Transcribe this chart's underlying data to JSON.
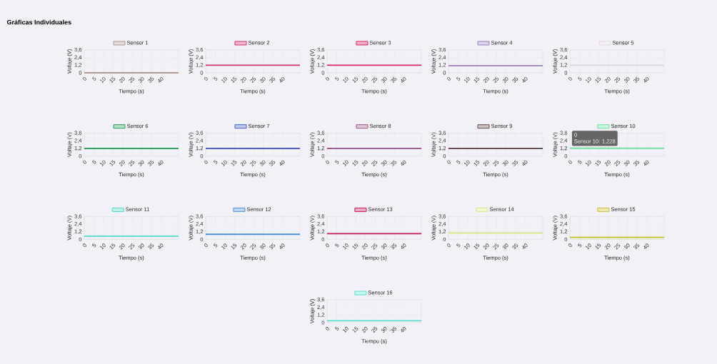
{
  "chart_data": [
    {
      "type": "line",
      "title": "Gráficas Individuales",
      "categories": [
        "0",
        null,
        null,
        null,
        null,
        "5",
        null,
        null,
        null,
        null,
        "10",
        null,
        null,
        null,
        null,
        "15",
        null,
        null,
        null,
        null,
        "20",
        null,
        null,
        null,
        null,
        "25",
        null,
        null,
        null,
        null,
        "30",
        null,
        null,
        null,
        null,
        "35",
        null,
        null,
        null,
        null,
        "40",
        null,
        null,
        null,
        null,
        null,
        null,
        null,
        null,
        null
      ],
      "series": [
        {
          "name": "Sensor 1",
          "color": "#b09a90",
          "values": [
            0,
            0,
            0,
            0,
            0,
            0,
            0,
            0,
            0,
            0,
            0,
            0,
            0,
            0,
            0,
            0,
            0,
            0,
            0,
            0,
            0,
            0,
            0,
            0,
            0,
            0,
            0,
            0,
            0,
            0,
            0,
            0,
            0,
            0,
            0,
            0,
            0,
            0,
            0,
            0,
            0,
            0,
            0,
            0,
            0,
            0,
            0,
            0,
            0,
            0
          ]
        }
      ],
      "ylim": [
        0,
        3.6
      ],
      "yticks": [
        0,
        {
          "value": 1.2,
          "label": "1,2"
        },
        {
          "value": 2.4,
          "label": "2,4"
        },
        {
          "value": 3.6,
          "label": "3,6"
        }
      ],
      "xlabel": "Tiempo (s)",
      "ylabel": "Voltaje (V)",
      "grid": true,
      "legend": "top"
    },
    {
      "type": "line",
      "categories": [
        "0",
        null,
        null,
        null,
        null,
        "5",
        null,
        null,
        null,
        null,
        "10",
        null,
        null,
        null,
        null,
        "15",
        null,
        null,
        null,
        null,
        "20",
        null,
        null,
        null,
        null,
        "25",
        null,
        null,
        null,
        null,
        "30",
        null,
        null,
        null,
        null,
        "35",
        null,
        null,
        null,
        null,
        "40",
        null,
        null,
        null,
        null,
        null,
        null,
        null,
        null,
        null
      ],
      "series": [
        {
          "name": "Sensor 2",
          "color": "#d6336c",
          "values": [
            1.2,
            1.2,
            1.2,
            1.2,
            1.2,
            1.2,
            1.2,
            1.2,
            1.2,
            1.2,
            1.2,
            1.2,
            1.2,
            1.2,
            1.2,
            1.2,
            1.2,
            1.2,
            1.2,
            1.2,
            1.2,
            1.2,
            1.2,
            1.2,
            1.2,
            1.2,
            1.2,
            1.2,
            1.2,
            1.2,
            1.2,
            1.2,
            1.2,
            1.2,
            1.2,
            1.2,
            1.2,
            1.2,
            1.2,
            1.2,
            1.2,
            1.2,
            1.2,
            1.2,
            1.2,
            1.2,
            1.2,
            1.2,
            1.2,
            1.2
          ]
        }
      ],
      "ylim": [
        0,
        3.6
      ],
      "yticks": [
        0,
        {
          "value": 1.2,
          "label": "1,2"
        },
        {
          "value": 2.4,
          "label": "2,4"
        },
        {
          "value": 3.6,
          "label": "3,6"
        }
      ],
      "xlabel": "Tiempo (s)",
      "ylabel": "Voltaje (V)",
      "grid": true,
      "legend": "top"
    },
    {
      "type": "line",
      "categories": [
        "0",
        null,
        null,
        null,
        null,
        "5",
        null,
        null,
        null,
        null,
        "10",
        null,
        null,
        null,
        null,
        "15",
        null,
        null,
        null,
        null,
        "20",
        null,
        null,
        null,
        null,
        "25",
        null,
        null,
        null,
        null,
        "30",
        null,
        null,
        null,
        null,
        "35",
        null,
        null,
        null,
        null,
        "40",
        null,
        null,
        null,
        null,
        null,
        null,
        null,
        null,
        null
      ],
      "series": [
        {
          "name": "Sensor 3",
          "color": "#e0245e",
          "values": [
            1.2,
            1.2,
            1.2,
            1.2,
            1.2,
            1.2,
            1.2,
            1.2,
            1.2,
            1.2,
            1.2,
            1.2,
            1.2,
            1.2,
            1.2,
            1.2,
            1.2,
            1.2,
            1.2,
            1.2,
            1.2,
            1.2,
            1.2,
            1.2,
            1.2,
            1.2,
            1.2,
            1.2,
            1.2,
            1.2,
            1.2,
            1.2,
            1.2,
            1.2,
            1.2,
            1.2,
            1.2,
            1.2,
            1.2,
            1.2,
            1.2,
            1.2,
            1.2,
            1.2,
            1.2,
            1.2,
            1.2,
            1.2,
            1.2,
            1.2
          ]
        }
      ],
      "ylim": [
        0,
        3.6
      ],
      "yticks": [
        0,
        {
          "value": 1.2,
          "label": "1,2"
        },
        {
          "value": 2.4,
          "label": "2,4"
        },
        {
          "value": 3.6,
          "label": "3,6"
        }
      ],
      "xlabel": "Tiempo (s)",
      "ylabel": "Voltaje (V)",
      "grid": true,
      "legend": "top"
    },
    {
      "type": "line",
      "categories": [
        "0",
        null,
        null,
        null,
        null,
        "5",
        null,
        null,
        null,
        null,
        "10",
        null,
        null,
        null,
        null,
        "15",
        null,
        null,
        null,
        null,
        "20",
        null,
        null,
        null,
        null,
        "25",
        null,
        null,
        null,
        null,
        "30",
        null,
        null,
        null,
        null,
        "35",
        null,
        null,
        null,
        null,
        "40",
        null,
        null,
        null,
        null,
        null,
        null,
        null,
        null,
        null
      ],
      "series": [
        {
          "name": "Sensor 4",
          "color": "#9b7fc4",
          "values": [
            1.1,
            1.1,
            1.1,
            1.1,
            1.1,
            1.1,
            1.1,
            1.1,
            1.1,
            1.1,
            1.1,
            1.1,
            1.1,
            1.1,
            1.1,
            1.1,
            1.1,
            1.1,
            1.1,
            1.1,
            1.1,
            1.1,
            1.1,
            1.1,
            1.1,
            1.1,
            1.1,
            1.1,
            1.1,
            1.1,
            1.1,
            1.1,
            1.1,
            1.1,
            1.1,
            1.1,
            1.1,
            1.1,
            1.1,
            1.1,
            1.1,
            1.1,
            1.1,
            1.1,
            1.1,
            1.1,
            1.1,
            1.1,
            1.1,
            1.1
          ]
        }
      ],
      "ylim": [
        0,
        3.6
      ],
      "yticks": [
        0,
        {
          "value": 1.2,
          "label": "1,2"
        },
        {
          "value": 2.4,
          "label": "2,4"
        },
        {
          "value": 3.6,
          "label": "3,6"
        }
      ],
      "xlabel": "Tiempo (s)",
      "ylabel": "Voltaje (V)",
      "grid": true,
      "legend": "top"
    },
    {
      "type": "line",
      "categories": [
        "0",
        null,
        null,
        null,
        null,
        "5",
        null,
        null,
        null,
        null,
        "10",
        null,
        null,
        null,
        null,
        "15",
        null,
        null,
        null,
        null,
        "20",
        null,
        null,
        null,
        null,
        "25",
        null,
        null,
        null,
        null,
        "30",
        null,
        null,
        null,
        null,
        "35",
        null,
        null,
        null,
        null,
        "40",
        null,
        null,
        null,
        null,
        null,
        null,
        null,
        null,
        null
      ],
      "series": [
        {
          "name": "Sensor 5",
          "color": "#e2d8dc",
          "values": [
            1.2,
            1.2,
            1.2,
            1.2,
            1.2,
            1.2,
            1.2,
            1.2,
            1.2,
            1.2,
            1.2,
            1.2,
            1.2,
            1.2,
            1.2,
            1.2,
            1.2,
            1.2,
            1.2,
            1.2,
            1.2,
            1.2,
            1.2,
            1.2,
            1.2,
            1.2,
            1.2,
            1.2,
            1.2,
            1.2,
            1.2,
            1.2,
            1.2,
            1.2,
            1.2,
            1.2,
            1.2,
            1.2,
            1.2,
            1.2,
            1.2,
            1.2,
            1.2,
            1.2,
            1.2,
            1.2,
            1.2,
            1.2,
            1.2,
            1.2
          ]
        }
      ],
      "ylim": [
        0,
        3.6
      ],
      "yticks": [
        0,
        {
          "value": 1.2,
          "label": "1,2"
        },
        {
          "value": 2.4,
          "label": "2,4"
        },
        {
          "value": 3.6,
          "label": "3,6"
        }
      ],
      "xlabel": "Tiempo (s)",
      "ylabel": "Voltaje (V)",
      "grid": true,
      "legend": "top"
    },
    {
      "type": "line",
      "categories": [
        "0",
        null,
        null,
        null,
        null,
        "5",
        null,
        null,
        null,
        null,
        "10",
        null,
        null,
        null,
        null,
        "15",
        null,
        null,
        null,
        null,
        "20",
        null,
        null,
        null,
        null,
        "25",
        null,
        null,
        null,
        null,
        "30",
        null,
        null,
        null,
        null,
        "35",
        null,
        null,
        null,
        null,
        "40",
        null,
        null,
        null,
        null,
        null,
        null,
        null,
        null,
        null
      ],
      "series": [
        {
          "name": "Sensor 6",
          "color": "#2e9e5b",
          "values": [
            1.2,
            1.2,
            1.2,
            1.2,
            1.2,
            1.2,
            1.2,
            1.2,
            1.2,
            1.2,
            1.2,
            1.2,
            1.2,
            1.2,
            1.2,
            1.2,
            1.2,
            1.2,
            1.2,
            1.2,
            1.2,
            1.2,
            1.2,
            1.2,
            1.2,
            1.2,
            1.2,
            1.2,
            1.2,
            1.2,
            1.2,
            1.2,
            1.2,
            1.2,
            1.2,
            1.2,
            1.2,
            1.2,
            1.2,
            1.2,
            1.2,
            1.2,
            1.2,
            1.2,
            1.2,
            1.2,
            1.2,
            1.2,
            1.2,
            1.2
          ]
        }
      ],
      "ylim": [
        0,
        3.6
      ],
      "yticks": [
        0,
        {
          "value": 1.2,
          "label": "1,2"
        },
        {
          "value": 2.4,
          "label": "2,4"
        },
        {
          "value": 3.6,
          "label": "3,6"
        }
      ],
      "xlabel": "Tiempo (s)",
      "ylabel": "Voltaje (V)",
      "grid": true,
      "legend": "top"
    },
    {
      "type": "line",
      "categories": [
        "0",
        null,
        null,
        null,
        null,
        "5",
        null,
        null,
        null,
        null,
        "10",
        null,
        null,
        null,
        null,
        "15",
        null,
        null,
        null,
        null,
        "20",
        null,
        null,
        null,
        null,
        "25",
        null,
        null,
        null,
        null,
        "30",
        null,
        null,
        null,
        null,
        "35",
        null,
        null,
        null,
        null,
        "40",
        null,
        null,
        null,
        null,
        null,
        null,
        null,
        null,
        null
      ],
      "series": [
        {
          "name": "Sensor 7",
          "color": "#4b5fc9",
          "values": [
            1.2,
            1.2,
            1.2,
            1.2,
            1.2,
            1.2,
            1.2,
            1.2,
            1.2,
            1.2,
            1.2,
            1.2,
            1.2,
            1.2,
            1.2,
            1.2,
            1.2,
            1.2,
            1.2,
            1.2,
            1.2,
            1.2,
            1.2,
            1.2,
            1.2,
            1.2,
            1.2,
            1.2,
            1.2,
            1.2,
            1.2,
            1.2,
            1.2,
            1.2,
            1.2,
            1.2,
            1.2,
            1.2,
            1.2,
            1.2,
            1.2,
            1.2,
            1.2,
            1.2,
            1.2,
            1.2,
            1.2,
            1.2,
            1.2,
            1.2
          ]
        }
      ],
      "ylim": [
        0,
        3.6
      ],
      "yticks": [
        0,
        {
          "value": 1.2,
          "label": "1,2"
        },
        {
          "value": 2.4,
          "label": "2,4"
        },
        {
          "value": 3.6,
          "label": "3,6"
        }
      ],
      "xlabel": "Tiempo (s)",
      "ylabel": "Voltaje (V)",
      "grid": true,
      "legend": "top"
    },
    {
      "type": "line",
      "categories": [
        "0",
        null,
        null,
        null,
        null,
        "5",
        null,
        null,
        null,
        null,
        "10",
        null,
        null,
        null,
        null,
        "15",
        null,
        null,
        null,
        null,
        "20",
        null,
        null,
        null,
        null,
        "25",
        null,
        null,
        null,
        null,
        "30",
        null,
        null,
        null,
        null,
        "35",
        null,
        null,
        null,
        null,
        "40",
        null,
        null,
        null,
        null,
        null,
        null,
        null,
        null,
        null
      ],
      "series": [
        {
          "name": "Sensor 8",
          "color": "#9c5d8f",
          "values": [
            1.2,
            1.2,
            1.2,
            1.2,
            1.2,
            1.2,
            1.2,
            1.2,
            1.2,
            1.2,
            1.2,
            1.2,
            1.2,
            1.2,
            1.2,
            1.2,
            1.2,
            1.2,
            1.2,
            1.2,
            1.2,
            1.2,
            1.2,
            1.2,
            1.2,
            1.2,
            1.2,
            1.2,
            1.2,
            1.2,
            1.2,
            1.2,
            1.2,
            1.2,
            1.2,
            1.2,
            1.2,
            1.2,
            1.2,
            1.2,
            1.2,
            1.2,
            1.2,
            1.2,
            1.2,
            1.2,
            1.2,
            1.2,
            1.2,
            1.2
          ]
        }
      ],
      "ylim": [
        0,
        3.6
      ],
      "yticks": [
        0,
        {
          "value": 1.2,
          "label": "1,2"
        },
        {
          "value": 2.4,
          "label": "2,4"
        },
        {
          "value": 3.6,
          "label": "3,6"
        }
      ],
      "xlabel": "Tiempo (s)",
      "ylabel": "Voltaje (V)",
      "grid": true,
      "legend": "top"
    },
    {
      "type": "line",
      "categories": [
        "0",
        null,
        null,
        null,
        null,
        "5",
        null,
        null,
        null,
        null,
        "10",
        null,
        null,
        null,
        null,
        "15",
        null,
        null,
        null,
        null,
        "20",
        null,
        null,
        null,
        null,
        "25",
        null,
        null,
        null,
        null,
        "30",
        null,
        null,
        null,
        null,
        "35",
        null,
        null,
        null,
        null,
        "40",
        null,
        null,
        null,
        null,
        null,
        null,
        null,
        null,
        null
      ],
      "series": [
        {
          "name": "Sensor 9",
          "color": "#6b4e4e",
          "values": [
            1.2,
            1.2,
            1.2,
            1.2,
            1.2,
            1.2,
            1.2,
            1.2,
            1.2,
            1.2,
            1.2,
            1.2,
            1.2,
            1.2,
            1.2,
            1.2,
            1.2,
            1.2,
            1.2,
            1.2,
            1.2,
            1.2,
            1.2,
            1.2,
            1.2,
            1.2,
            1.2,
            1.2,
            1.2,
            1.2,
            1.2,
            1.2,
            1.2,
            1.2,
            1.2,
            1.2,
            1.2,
            1.2,
            1.2,
            1.2,
            1.2,
            1.2,
            1.2,
            1.2,
            1.2,
            1.2,
            1.2,
            1.2,
            1.2,
            1.2
          ]
        }
      ],
      "ylim": [
        0,
        3.6
      ],
      "yticks": [
        0,
        {
          "value": 1.2,
          "label": "1,2"
        },
        {
          "value": 2.4,
          "label": "2,4"
        },
        {
          "value": 3.6,
          "label": "3,6"
        }
      ],
      "xlabel": "Tiempo (s)",
      "ylabel": "Voltaje (V)",
      "grid": true,
      "legend": "top"
    },
    {
      "type": "line",
      "categories": [
        "0",
        null,
        null,
        null,
        null,
        "5",
        null,
        null,
        null,
        null,
        "10",
        null,
        null,
        null,
        null,
        "15",
        null,
        null,
        null,
        null,
        "20",
        null,
        null,
        null,
        null,
        "25",
        null,
        null,
        null,
        null,
        "30",
        null,
        null,
        null,
        null,
        "35",
        null,
        null,
        null,
        null,
        "40",
        null,
        null,
        null,
        null,
        null,
        null,
        null,
        null,
        null
      ],
      "series": [
        {
          "name": "Sensor 10",
          "color": "#6ee0a0",
          "values": [
            1.228,
            1.228,
            1.228,
            1.228,
            1.228,
            1.228,
            1.228,
            1.228,
            1.228,
            1.228,
            1.228,
            1.228,
            1.228,
            1.228,
            1.228,
            1.228,
            1.228,
            1.228,
            1.228,
            1.228,
            1.228,
            1.228,
            1.228,
            1.228,
            1.228,
            1.228,
            1.228,
            1.228,
            1.228,
            1.228,
            1.228,
            1.228,
            1.228,
            1.228,
            1.228,
            1.228,
            1.228,
            1.228,
            1.228,
            1.228,
            1.228,
            1.228,
            1.228,
            1.228,
            1.228,
            1.228,
            1.228,
            1.228,
            1.228,
            1.228
          ]
        }
      ],
      "ylim": [
        0,
        3.6
      ],
      "yticks": [
        0,
        {
          "value": 1.2,
          "label": "1,2"
        },
        {
          "value": 2.4,
          "label": "2,4"
        },
        {
          "value": 3.6,
          "label": "3,6"
        }
      ],
      "xlabel": "Tiempo (s)",
      "ylabel": "Voltaje (V)",
      "grid": true,
      "legend": "top",
      "annotations": [
        "0",
        {
          "text": "Sensor 10: 1,228",
          "x": "0",
          "y": 1.228
        }
      ]
    },
    {
      "type": "line",
      "categories": [
        "0",
        null,
        null,
        null,
        null,
        "5",
        null,
        null,
        null,
        null,
        "10",
        null,
        null,
        null,
        null,
        "15",
        null,
        null,
        null,
        null,
        "20",
        null,
        null,
        null,
        null,
        "25",
        null,
        null,
        null,
        null,
        "30",
        null,
        null,
        null,
        null,
        "35",
        null,
        null,
        null,
        null,
        "40",
        null,
        null,
        null,
        null,
        null,
        null,
        null,
        null,
        null
      ],
      "series": [
        {
          "name": "Sensor 11",
          "color": "#4fd8c8",
          "values": [
            0.5,
            0.5,
            0.5,
            0.5,
            0.5,
            0.5,
            0.5,
            0.5,
            0.5,
            0.5,
            0.5,
            0.5,
            0.5,
            0.5,
            0.5,
            0.5,
            0.5,
            0.5,
            0.5,
            0.5,
            0.5,
            0.5,
            0.5,
            0.5,
            0.5,
            0.5,
            0.5,
            0.5,
            0.5,
            0.5,
            0.5,
            0.5,
            0.5,
            0.5,
            0.5,
            0.5,
            0.5,
            0.5,
            0.5,
            0.5,
            0.5,
            0.5,
            0.5,
            0.5,
            0.5,
            0.5,
            0.5,
            0.5,
            0.5,
            0.5
          ]
        }
      ],
      "ylim": [
        0,
        3.6
      ],
      "yticks": [
        0,
        {
          "value": 1.2,
          "label": "1,2"
        },
        {
          "value": 2.4,
          "label": "2,4"
        },
        {
          "value": 3.6,
          "label": "3,6"
        }
      ],
      "xlabel": "Tiempo (s)",
      "ylabel": "Voltaje (V)",
      "grid": true,
      "legend": "top"
    },
    {
      "type": "line",
      "categories": [
        "0",
        null,
        null,
        null,
        null,
        "5",
        null,
        null,
        null,
        null,
        "10",
        null,
        null,
        null,
        null,
        "15",
        null,
        null,
        null,
        null,
        "20",
        null,
        null,
        null,
        null,
        "25",
        null,
        null,
        null,
        null,
        "30",
        null,
        null,
        null,
        null,
        "35",
        null,
        null,
        null,
        null,
        "40",
        null,
        null,
        null,
        null,
        null,
        null,
        null,
        null,
        null
      ],
      "series": [
        {
          "name": "Sensor 12",
          "color": "#4a8fd6",
          "values": [
            0.8,
            0.8,
            0.8,
            0.8,
            0.8,
            0.8,
            0.8,
            0.8,
            0.8,
            0.8,
            0.8,
            0.8,
            0.8,
            0.8,
            0.8,
            0.8,
            0.8,
            0.8,
            0.8,
            0.8,
            0.8,
            0.8,
            0.8,
            0.8,
            0.8,
            0.8,
            0.8,
            0.8,
            0.8,
            0.8,
            0.8,
            0.8,
            0.8,
            0.8,
            0.8,
            0.8,
            0.8,
            0.8,
            0.8,
            0.8,
            0.8,
            0.8,
            0.8,
            0.8,
            0.8,
            0.8,
            0.8,
            0.8,
            0.8,
            0.8
          ]
        }
      ],
      "ylim": [
        0,
        3.6
      ],
      "yticks": [
        0,
        {
          "value": 1.2,
          "label": "1,2"
        },
        {
          "value": 2.4,
          "label": "2,4"
        },
        {
          "value": 3.6,
          "label": "3,6"
        }
      ],
      "xlabel": "Tiempo (s)",
      "ylabel": "Voltaje (V)",
      "grid": true,
      "legend": "top"
    },
    {
      "type": "line",
      "categories": [
        "0",
        null,
        null,
        null,
        null,
        "5",
        null,
        null,
        null,
        null,
        "10",
        null,
        null,
        null,
        null,
        "15",
        null,
        null,
        null,
        null,
        "20",
        null,
        null,
        null,
        null,
        "25",
        null,
        null,
        null,
        null,
        "30",
        null,
        null,
        null,
        null,
        "35",
        null,
        null,
        null,
        null,
        "40",
        null,
        null,
        null,
        null,
        null,
        null,
        null,
        null,
        null
      ],
      "series": [
        {
          "name": "Sensor 13",
          "color": "#c2185b",
          "values": [
            0.9,
            0.9,
            0.9,
            0.9,
            0.9,
            0.9,
            0.9,
            0.9,
            0.9,
            0.9,
            0.9,
            0.9,
            0.9,
            0.9,
            0.9,
            0.9,
            0.9,
            0.9,
            0.9,
            0.9,
            0.9,
            0.9,
            0.9,
            0.9,
            0.9,
            0.9,
            0.9,
            0.9,
            0.9,
            0.9,
            0.9,
            0.9,
            0.9,
            0.9,
            0.9,
            0.9,
            0.9,
            0.9,
            0.9,
            0.9,
            0.9,
            0.9,
            0.9,
            0.9,
            0.9,
            0.9,
            0.9,
            0.9,
            0.9,
            0.9
          ]
        }
      ],
      "ylim": [
        0,
        3.6
      ],
      "yticks": [
        0,
        {
          "value": 1.2,
          "label": "1,2"
        },
        {
          "value": 2.4,
          "label": "2,4"
        },
        {
          "value": 3.6,
          "label": "3,6"
        }
      ],
      "xlabel": "Tiempo (s)",
      "ylabel": "Voltaje (V)",
      "grid": true,
      "legend": "top"
    },
    {
      "type": "line",
      "categories": [
        "0",
        null,
        null,
        null,
        null,
        "5",
        null,
        null,
        null,
        null,
        "10",
        null,
        null,
        null,
        null,
        "15",
        null,
        null,
        null,
        null,
        "20",
        null,
        null,
        null,
        null,
        "25",
        null,
        null,
        null,
        null,
        "30",
        null,
        null,
        null,
        null,
        "35",
        null,
        null,
        null,
        null,
        "40",
        null,
        null,
        null,
        null,
        null,
        null,
        null,
        null,
        null
      ],
      "series": [
        {
          "name": "Sensor 14",
          "color": "#d8e88a",
          "values": [
            1.0,
            1.0,
            1.0,
            1.0,
            1.0,
            1.0,
            1.0,
            1.0,
            1.0,
            1.0,
            1.0,
            1.0,
            1.0,
            1.0,
            1.0,
            1.0,
            1.0,
            1.0,
            1.0,
            1.0,
            1.0,
            1.0,
            1.0,
            1.0,
            1.0,
            1.0,
            1.0,
            1.0,
            1.0,
            1.0,
            1.0,
            1.0,
            1.0,
            1.0,
            1.0,
            1.0,
            1.0,
            1.0,
            1.0,
            1.0,
            1.0,
            1.0,
            1.0,
            1.0,
            1.0,
            1.0,
            1.0,
            1.0,
            1.0,
            1.0
          ]
        }
      ],
      "ylim": [
        0,
        3.6
      ],
      "yticks": [
        0,
        {
          "value": 1.2,
          "label": "1,2"
        },
        {
          "value": 2.4,
          "label": "2,4"
        },
        {
          "value": 3.6,
          "label": "3,6"
        }
      ],
      "xlabel": "Tiempo (s)",
      "ylabel": "Voltaje (V)",
      "grid": true,
      "legend": "top"
    },
    {
      "type": "line",
      "categories": [
        "0",
        null,
        null,
        null,
        null,
        "5",
        null,
        null,
        null,
        null,
        "10",
        null,
        null,
        null,
        null,
        "15",
        null,
        null,
        null,
        null,
        "20",
        null,
        null,
        null,
        null,
        "25",
        null,
        null,
        null,
        null,
        "30",
        null,
        null,
        null,
        null,
        "35",
        null,
        null,
        null,
        null,
        "40",
        null,
        null,
        null,
        null,
        null,
        null,
        null,
        null,
        null
      ],
      "series": [
        {
          "name": "Sensor 15",
          "color": "#c8c030",
          "values": [
            0.3,
            0.3,
            0.3,
            0.3,
            0.3,
            0.3,
            0.3,
            0.3,
            0.3,
            0.3,
            0.3,
            0.3,
            0.3,
            0.3,
            0.3,
            0.3,
            0.3,
            0.3,
            0.3,
            0.3,
            0.3,
            0.3,
            0.3,
            0.3,
            0.3,
            0.3,
            0.3,
            0.3,
            0.3,
            0.3,
            0.3,
            0.3,
            0.3,
            0.3,
            0.3,
            0.3,
            0.3,
            0.3,
            0.3,
            0.3,
            0.3,
            0.3,
            0.3,
            0.3,
            0.3,
            0.3,
            0.3,
            0.3,
            0.3,
            0.3
          ]
        }
      ],
      "ylim": [
        0,
        3.6
      ],
      "yticks": [
        0,
        {
          "value": 1.2,
          "label": "1,2"
        },
        {
          "value": 2.4,
          "label": "2,4"
        },
        {
          "value": 3.6,
          "label": "3,6"
        }
      ],
      "xlabel": "Tiempo (s)",
      "ylabel": "Voltaje (V)",
      "grid": true,
      "legend": "top"
    },
    {
      "type": "line",
      "categories": [
        "0",
        null,
        null,
        null,
        null,
        "5",
        null,
        null,
        null,
        null,
        "10",
        null,
        null,
        null,
        null,
        "15",
        null,
        null,
        null,
        null,
        "20",
        null,
        null,
        null,
        null,
        "25",
        null,
        null,
        null,
        null,
        "30",
        null,
        null,
        null,
        null,
        "35",
        null,
        null,
        null,
        null,
        "40",
        null,
        null,
        null,
        null,
        null,
        null,
        null,
        null,
        null
      ],
      "series": [
        {
          "name": "Sensor 16",
          "color": "#5ae0d0",
          "values": [
            0.3,
            0.3,
            0.3,
            0.3,
            0.3,
            0.3,
            0.3,
            0.3,
            0.3,
            0.3,
            0.3,
            0.3,
            0.3,
            0.3,
            0.3,
            0.3,
            0.3,
            0.3,
            0.3,
            0.3,
            0.3,
            0.3,
            0.3,
            0.3,
            0.3,
            0.3,
            0.3,
            0.3,
            0.3,
            0.3,
            0.3,
            0.3,
            0.3,
            0.3,
            0.3,
            0.3,
            0.3,
            0.3,
            0.3,
            0.3,
            0.3,
            0.3,
            0.3,
            0.3,
            0.3,
            0.3,
            0.3,
            0.3,
            0.3,
            0.3
          ]
        }
      ],
      "ylim": [
        0,
        3.6
      ],
      "yticks": [
        0,
        {
          "value": 1.2,
          "label": "1,2"
        },
        {
          "value": 2.4,
          "label": "2,4"
        },
        {
          "value": 3.6,
          "label": "3,6"
        }
      ],
      "xlabel": "Tiempo (s)",
      "ylabel": "Voltaje (V)",
      "grid": true,
      "legend": "top"
    }
  ]
}
